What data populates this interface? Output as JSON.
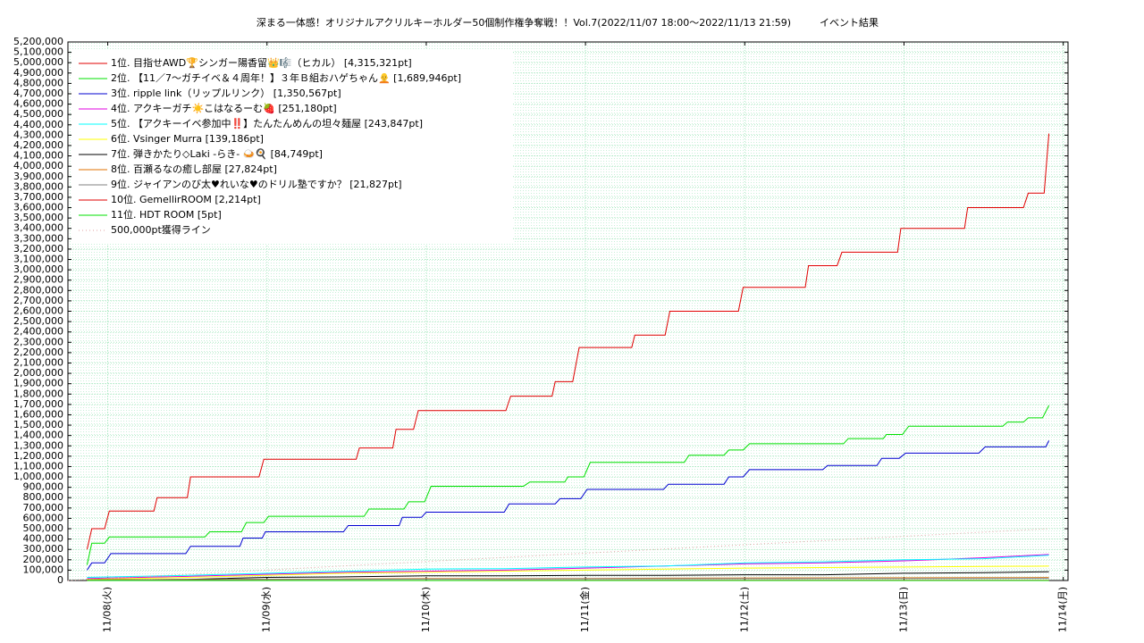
{
  "chart_data": {
    "type": "line",
    "title": "深まる一体感！オリジナルアクリルキーホルダー50個制作権争奪戦！！Vol.7(2022/11/07 18:00～2022/11/13 21:59)",
    "subtitle": "イベント結果",
    "xlim": [
      7.75,
      14.03
    ],
    "xticks": [
      {
        "value": 8,
        "label": "11/08(火)"
      },
      {
        "value": 9,
        "label": "11/09(水)"
      },
      {
        "value": 10,
        "label": "11/10(木)"
      },
      {
        "value": 11,
        "label": "11/11(金)"
      },
      {
        "value": 12,
        "label": "11/12(土)"
      },
      {
        "value": 13,
        "label": "11/13(日)"
      },
      {
        "value": 14,
        "label": "11/14(月)"
      }
    ],
    "ylim": [
      0,
      5200000
    ],
    "yticks": [
      0,
      {
        "value": 100000,
        "label": "100,000"
      },
      {
        "value": 200000,
        "label": "200,000"
      },
      {
        "value": 300000,
        "label": "300,000"
      },
      {
        "value": 400000,
        "label": "400,000"
      },
      {
        "value": 500000,
        "label": "500,000"
      },
      {
        "value": 600000,
        "label": "600,000"
      },
      {
        "value": 700000,
        "label": "700,000"
      },
      {
        "value": 800000,
        "label": "800,000"
      },
      {
        "value": 900000,
        "label": "900,000"
      },
      {
        "value": 1000000,
        "label": "1,000,000"
      },
      {
        "value": 1100000,
        "label": "1,100,000"
      },
      {
        "value": 1200000,
        "label": "1,200,000"
      },
      {
        "value": 1300000,
        "label": "1,300,000"
      },
      {
        "value": 1400000,
        "label": "1,400,000"
      },
      {
        "value": 1500000,
        "label": "1,500,000"
      },
      {
        "value": 1600000,
        "label": "1,600,000"
      },
      {
        "value": 1700000,
        "label": "1,700,000"
      },
      {
        "value": 1800000,
        "label": "1,800,000"
      },
      {
        "value": 1900000,
        "label": "1,900,000"
      },
      {
        "value": 2000000,
        "label": "2,000,000"
      },
      {
        "value": 2100000,
        "label": "2,100,000"
      },
      {
        "value": 2200000,
        "label": "2,200,000"
      },
      {
        "value": 2300000,
        "label": "2,300,000"
      },
      {
        "value": 2400000,
        "label": "2,400,000"
      },
      {
        "value": 2500000,
        "label": "2,500,000"
      },
      {
        "value": 2600000,
        "label": "2,600,000"
      },
      {
        "value": 2700000,
        "label": "2,700,000"
      },
      {
        "value": 2800000,
        "label": "2,800,000"
      },
      {
        "value": 2900000,
        "label": "2,900,000"
      },
      {
        "value": 3000000,
        "label": "3,000,000"
      },
      {
        "value": 3100000,
        "label": "3,100,000"
      },
      {
        "value": 3200000,
        "label": "3,200,000"
      },
      {
        "value": 3300000,
        "label": "3,300,000"
      },
      {
        "value": 3400000,
        "label": "3,400,000"
      },
      {
        "value": 3500000,
        "label": "3,500,000"
      },
      {
        "value": 3600000,
        "label": "3,600,000"
      },
      {
        "value": 3700000,
        "label": "3,700,000"
      },
      {
        "value": 3800000,
        "label": "3,800,000"
      },
      {
        "value": 3900000,
        "label": "3,900,000"
      },
      {
        "value": 4000000,
        "label": "4,000,000"
      },
      {
        "value": 4100000,
        "label": "4,100,000"
      },
      {
        "value": 4200000,
        "label": "4,200,000"
      },
      {
        "value": 4300000,
        "label": "4,300,000"
      },
      {
        "value": 4400000,
        "label": "4,400,000"
      },
      {
        "value": 4500000,
        "label": "4,500,000"
      },
      {
        "value": 4600000,
        "label": "4,600,000"
      },
      {
        "value": 4700000,
        "label": "4,700,000"
      },
      {
        "value": 4800000,
        "label": "4,800,000"
      },
      {
        "value": 4900000,
        "label": "4,900,000"
      },
      {
        "value": 5000000,
        "label": "5,000,000"
      },
      {
        "value": 5100000,
        "label": "5,100,000"
      },
      {
        "value": 5200000,
        "label": "5,200,000"
      }
    ],
    "grid": true,
    "legend": "upper left",
    "series": [
      {
        "name": "1位. 目指せAWD🏆シンガー陽香留👑🎼（ヒカル） [4,315,321pt]",
        "color": "#e00000",
        "x": [
          7.87,
          7.9,
          7.98,
          8.01,
          8.29,
          8.31,
          8.5,
          8.52,
          8.95,
          8.98,
          9.56,
          9.58,
          9.79,
          9.81,
          9.92,
          9.95,
          10.5,
          10.53,
          10.79,
          10.81,
          10.92,
          10.96,
          11.29,
          11.31,
          11.5,
          11.53,
          11.96,
          11.99,
          12.38,
          12.4,
          12.58,
          12.61,
          12.96,
          12.98,
          13.38,
          13.4,
          13.75,
          13.78,
          13.88,
          13.91
        ],
        "values": [
          300000,
          500000,
          500000,
          670000,
          670000,
          800000,
          800000,
          1000000,
          1000000,
          1170000,
          1170000,
          1280000,
          1280000,
          1460000,
          1460000,
          1640000,
          1640000,
          1780000,
          1780000,
          1920000,
          1920000,
          2250000,
          2250000,
          2370000,
          2370000,
          2600000,
          2600000,
          2830000,
          2830000,
          3040000,
          3040000,
          3170000,
          3170000,
          3400000,
          3400000,
          3600000,
          3600000,
          3740000,
          3740000,
          4315321
        ]
      },
      {
        "name": "2位. 【11／7〜ガチイベ＆４周年！】３年Ｂ組おハゲちゃん🧑‍🦲 [1,689,946pt]",
        "color": "#00e000",
        "x": [
          7.87,
          7.9,
          7.98,
          8.01,
          8.61,
          8.64,
          8.84,
          8.87,
          8.98,
          9.01,
          9.61,
          9.64,
          9.86,
          9.89,
          9.99,
          10.03,
          10.61,
          10.65,
          10.87,
          10.89,
          10.99,
          11.03,
          11.62,
          11.65,
          11.87,
          11.9,
          11.99,
          12.03,
          12.62,
          12.65,
          12.87,
          12.89,
          12.99,
          13.03,
          13.62,
          13.65,
          13.75,
          13.78,
          13.87,
          13.91
        ],
        "values": [
          150000,
          360000,
          360000,
          420000,
          420000,
          470000,
          470000,
          560000,
          560000,
          620000,
          620000,
          690000,
          690000,
          760000,
          760000,
          910000,
          910000,
          950000,
          950000,
          1000000,
          1000000,
          1140000,
          1140000,
          1210000,
          1210000,
          1260000,
          1260000,
          1320000,
          1320000,
          1370000,
          1370000,
          1410000,
          1410000,
          1490000,
          1490000,
          1530000,
          1530000,
          1570000,
          1570000,
          1689946
        ]
      },
      {
        "name": "3位. ripple link（リップルリンク） [1,350,567pt]",
        "color": "#0000d0",
        "x": [
          7.87,
          7.9,
          7.98,
          8.02,
          8.49,
          8.52,
          8.83,
          8.85,
          8.97,
          8.99,
          9.48,
          9.51,
          9.83,
          9.85,
          9.97,
          10,
          10.49,
          10.52,
          10.81,
          10.84,
          10.97,
          11.01,
          11.49,
          11.52,
          11.87,
          11.9,
          11.99,
          12.03,
          12.49,
          12.52,
          12.83,
          12.86,
          12.97,
          13.01,
          13.47,
          13.51,
          13.89,
          13.91
        ],
        "values": [
          100000,
          170000,
          170000,
          260000,
          260000,
          330000,
          330000,
          410000,
          410000,
          470000,
          470000,
          530000,
          530000,
          610000,
          610000,
          660000,
          660000,
          740000,
          740000,
          790000,
          790000,
          880000,
          880000,
          930000,
          930000,
          1000000,
          1000000,
          1070000,
          1070000,
          1110000,
          1110000,
          1180000,
          1180000,
          1230000,
          1230000,
          1290000,
          1290000,
          1350567
        ]
      },
      {
        "name": "4位. アクキーガチ☀️こはなるーむ🍓 [251,180pt]",
        "color": "#e000e0",
        "x": [
          7.87,
          8.5,
          9,
          9.5,
          10,
          10.5,
          11,
          11.5,
          12,
          12.5,
          13,
          13.5,
          13.91
        ],
        "values": [
          20000,
          40000,
          60000,
          80000,
          90000,
          100000,
          120000,
          140000,
          160000,
          170000,
          190000,
          220000,
          251180
        ]
      },
      {
        "name": "5位. 【アクキーイベ参加中‼️】たんたんめんの坦々麺屋 [243,847pt]",
        "color": "#00ffff",
        "x": [
          7.87,
          8.5,
          9,
          9.5,
          10,
          10.5,
          11,
          11.5,
          12,
          12.5,
          13,
          13.5,
          13.91
        ],
        "values": [
          30000,
          50000,
          70000,
          90000,
          110000,
          115000,
          130000,
          140000,
          170000,
          180000,
          200000,
          210000,
          243847
        ]
      },
      {
        "name": "6位. Vsinger Murra [139,186pt]",
        "color": "#ffff00",
        "x": [
          7.87,
          8.5,
          9,
          9.5,
          10,
          10.5,
          11,
          11.5,
          12,
          12.5,
          13,
          13.5,
          13.91
        ],
        "values": [
          10000,
          30000,
          50000,
          70000,
          80000,
          90000,
          100000,
          110000,
          120000,
          125000,
          130000,
          135000,
          139186
        ]
      },
      {
        "name": "7位. 弾きかたり◇Laki -らき- 🍛🍳 [84,749pt]",
        "color": "#000000",
        "x": [
          7.87,
          8.5,
          9,
          9.5,
          10,
          10.5,
          11,
          11.5,
          12,
          12.5,
          13,
          13.5,
          13.91
        ],
        "values": [
          5000,
          10000,
          30000,
          35000,
          45000,
          45000,
          50000,
          50000,
          55000,
          55000,
          70000,
          75000,
          84749
        ]
      },
      {
        "name": "8位. 百瀬るなの癒し部屋 [27,824pt]",
        "color": "#e07000",
        "x": [
          7.87,
          8.5,
          9,
          9.5,
          10,
          10.5,
          11,
          11.5,
          12,
          12.5,
          13,
          13.5,
          13.91
        ],
        "values": [
          5000,
          10000,
          12000,
          15000,
          18000,
          18000,
          20000,
          22000,
          24000,
          25000,
          26000,
          27000,
          27824
        ]
      },
      {
        "name": "9位. ジャイアンのび太♥れいな♥のドリル塾ですか？ [21,827pt]",
        "color": "#808080",
        "x": [
          7.87,
          8.5,
          9,
          9.5,
          10,
          10.5,
          11,
          11.5,
          12,
          12.5,
          13,
          13.5,
          13.91
        ],
        "values": [
          3000,
          8000,
          10000,
          12000,
          14000,
          15000,
          16000,
          17000,
          18000,
          19000,
          20000,
          21000,
          21827
        ]
      },
      {
        "name": "10位. GemellirROOM [2,214pt]",
        "color": "#e00000",
        "x": [
          7.87,
          8.5,
          9,
          9.5,
          10,
          10.5,
          11,
          11.5,
          12,
          12.5,
          13,
          13.5,
          13.91
        ],
        "values": [
          0,
          500,
          800,
          1000,
          1200,
          1400,
          1600,
          1800,
          1900,
          2000,
          2100,
          2200,
          2214
        ]
      },
      {
        "name": "11位. HDT ROOM [5pt]",
        "color": "#00e000",
        "x": [
          7.87,
          13.5,
          13.91
        ],
        "values": [
          0,
          0,
          5
        ]
      },
      {
        "name": "500,000pt獲得ライン",
        "color": "#e0a0a0",
        "dash": "dotted",
        "x": [
          7.75,
          13.91
        ],
        "values": [
          0,
          500000
        ]
      }
    ]
  }
}
